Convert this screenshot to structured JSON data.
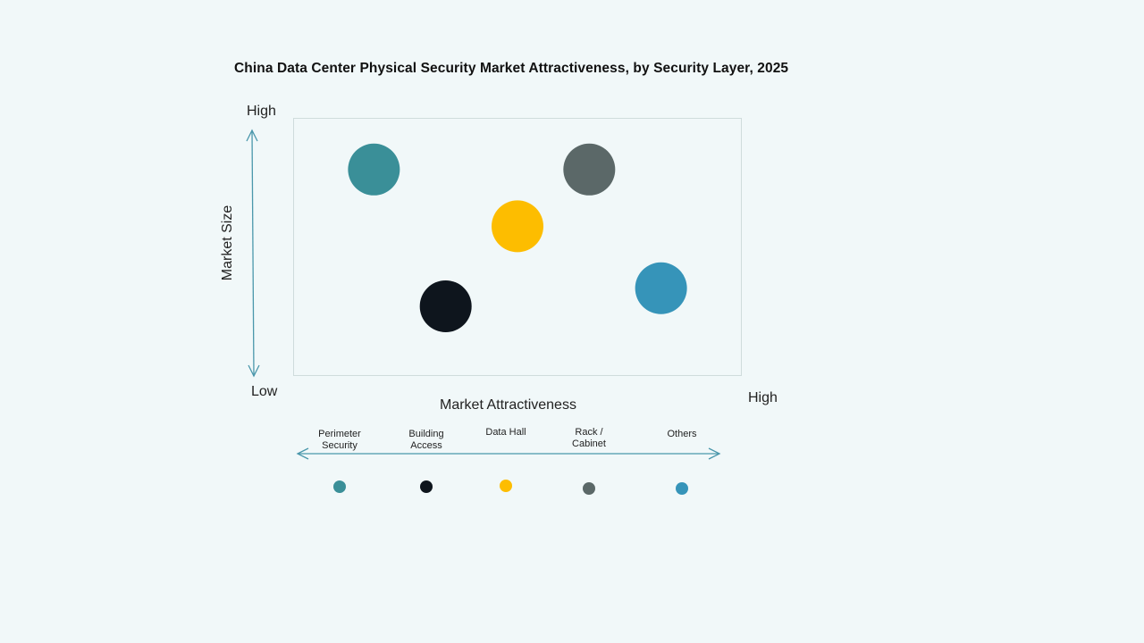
{
  "chart_data": {
    "type": "scatter",
    "title": "China Data Center Physical Security Market Attractiveness,  by Security Layer, 2025",
    "xlabel": "Market Attractiveness",
    "ylabel": "Market Size",
    "x_axis": {
      "low": "Low",
      "high": "High"
    },
    "y_axis": {
      "low": "Low",
      "high": "High"
    },
    "xlim": [
      0,
      10
    ],
    "ylim": [
      0,
      10
    ],
    "grid": false,
    "legend_position": "bottom",
    "points": [
      {
        "name": "Perimeter Security",
        "x": 1.8,
        "y": 8.0,
        "color": "#3a8f98"
      },
      {
        "name": "Building Access",
        "x": 3.4,
        "y": 2.7,
        "color": "#0e151d"
      },
      {
        "name": "Data Hall",
        "x": 5.0,
        "y": 5.8,
        "color": "#fdbd00"
      },
      {
        "name": "Rack / Cabinet",
        "x": 6.6,
        "y": 8.0,
        "color": "#5b6868"
      },
      {
        "name": "Others",
        "x": 8.2,
        "y": 3.4,
        "color": "#3694b9"
      }
    ]
  },
  "labels": {
    "title": "China Data Center Physical Security Market Attractiveness,  by Security Layer, 2025",
    "y_high": "High",
    "y_low": "Low",
    "x_high": "High",
    "x_title": "Market Attractiveness",
    "y_title": "Market Size"
  },
  "legend": [
    {
      "line1": "Perimeter",
      "line2": "Security",
      "color": "#3a8f98"
    },
    {
      "line1": "Building",
      "line2": "Access",
      "color": "#0e151d"
    },
    {
      "line1": "Data Hall",
      "line2": "",
      "color": "#fdbd00"
    },
    {
      "line1": "Rack /",
      "line2": "Cabinet",
      "color": "#5b6868"
    },
    {
      "line1": "Others",
      "line2": "",
      "color": "#3694b9"
    }
  ],
  "colors": {
    "axis_arrow": "#4a97ab",
    "plot_border": "#cfdcdc",
    "background": "#f1f8f9"
  }
}
